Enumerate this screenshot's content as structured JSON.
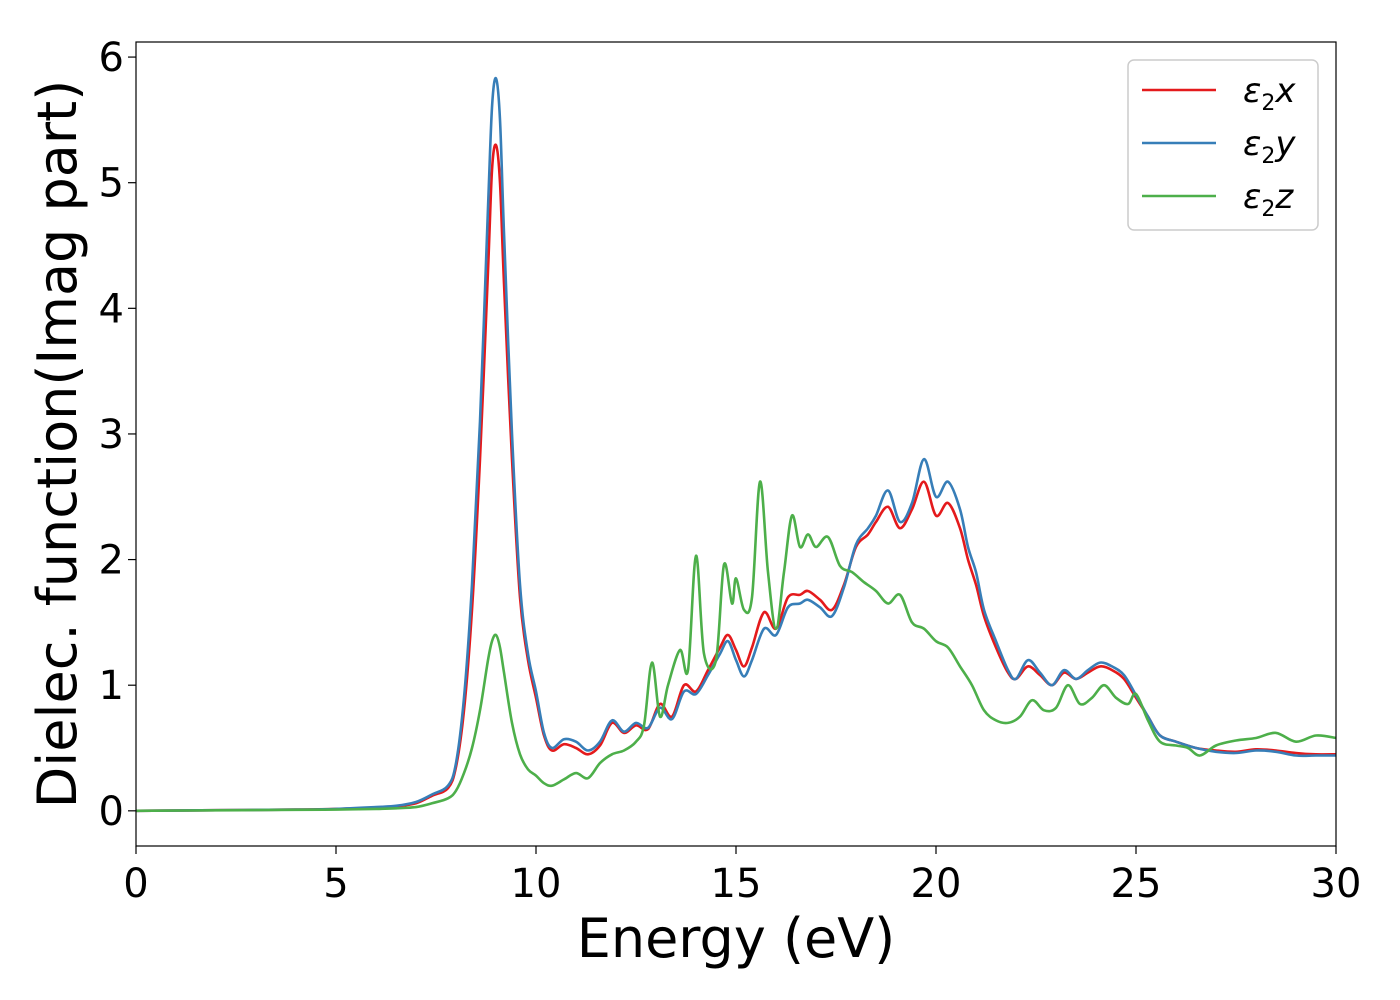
{
  "chart_data": {
    "type": "line",
    "title": "",
    "xlabel": "Energy (eV)",
    "ylabel": "Dielec. function(Imag part)",
    "xlim": [
      0,
      30
    ],
    "ylim": [
      -0.28,
      6.12
    ],
    "xticks": [
      0,
      5,
      10,
      15,
      20,
      25,
      30
    ],
    "yticks": [
      0,
      1,
      2,
      3,
      4,
      5,
      6
    ],
    "grid": false,
    "legend_position": "top-right",
    "series": [
      {
        "name": "ε2x",
        "name_base": "ε",
        "name_sub": "2",
        "name_suffix": "x",
        "color": "#e41a1c",
        "x": [
          0,
          2,
          4,
          5,
          6,
          6.5,
          7,
          7.4,
          7.8,
          8.0,
          8.2,
          8.4,
          8.6,
          8.8,
          8.9,
          9.0,
          9.1,
          9.2,
          9.4,
          9.6,
          9.8,
          10.0,
          10.2,
          10.4,
          10.7,
          11.0,
          11.3,
          11.6,
          11.9,
          12.2,
          12.5,
          12.8,
          13.1,
          13.4,
          13.7,
          14.0,
          14.3,
          14.6,
          14.8,
          15.0,
          15.2,
          15.4,
          15.7,
          16.0,
          16.3,
          16.6,
          16.8,
          17.1,
          17.4,
          17.7,
          18.0,
          18.3,
          18.5,
          18.8,
          19.1,
          19.4,
          19.7,
          20.0,
          20.3,
          20.6,
          20.8,
          21.0,
          21.2,
          21.5,
          21.8,
          22.0,
          22.3,
          22.6,
          22.9,
          23.2,
          23.5,
          23.8,
          24.1,
          24.4,
          24.7,
          25.0,
          25.3,
          25.6,
          26.0,
          26.5,
          27.0,
          27.5,
          28.0,
          28.5,
          29.0,
          29.5,
          30.0
        ],
        "y": [
          0,
          0.005,
          0.01,
          0.015,
          0.025,
          0.035,
          0.06,
          0.12,
          0.18,
          0.35,
          0.8,
          1.6,
          2.8,
          4.3,
          5.1,
          5.3,
          5.0,
          4.2,
          2.8,
          1.7,
          1.2,
          0.9,
          0.6,
          0.48,
          0.53,
          0.5,
          0.45,
          0.52,
          0.7,
          0.62,
          0.68,
          0.65,
          0.85,
          0.75,
          1.0,
          0.95,
          1.12,
          1.3,
          1.4,
          1.28,
          1.15,
          1.3,
          1.58,
          1.45,
          1.7,
          1.72,
          1.75,
          1.68,
          1.6,
          1.8,
          2.1,
          2.2,
          2.3,
          2.42,
          2.25,
          2.4,
          2.62,
          2.35,
          2.45,
          2.25,
          2.0,
          1.8,
          1.55,
          1.3,
          1.1,
          1.05,
          1.15,
          1.08,
          1.0,
          1.1,
          1.05,
          1.1,
          1.15,
          1.12,
          1.05,
          0.9,
          0.75,
          0.6,
          0.55,
          0.5,
          0.48,
          0.47,
          0.49,
          0.48,
          0.46,
          0.45,
          0.45
        ]
      },
      {
        "name": "ε2y",
        "name_base": "ε",
        "name_sub": "2",
        "name_suffix": "y",
        "color": "#377eb8",
        "x": [
          0,
          2,
          4,
          5,
          6,
          6.5,
          7,
          7.4,
          7.8,
          8.0,
          8.2,
          8.4,
          8.6,
          8.8,
          8.9,
          9.0,
          9.1,
          9.2,
          9.4,
          9.6,
          9.8,
          10.0,
          10.2,
          10.4,
          10.7,
          11.0,
          11.3,
          11.6,
          11.9,
          12.2,
          12.5,
          12.8,
          13.1,
          13.4,
          13.7,
          14.0,
          14.3,
          14.6,
          14.8,
          15.0,
          15.2,
          15.4,
          15.7,
          16.0,
          16.3,
          16.6,
          16.8,
          17.1,
          17.4,
          17.7,
          18.0,
          18.3,
          18.5,
          18.8,
          19.1,
          19.4,
          19.7,
          20.0,
          20.3,
          20.6,
          20.8,
          21.0,
          21.2,
          21.5,
          21.8,
          22.0,
          22.3,
          22.6,
          22.9,
          23.2,
          23.5,
          23.8,
          24.1,
          24.4,
          24.7,
          25.0,
          25.3,
          25.6,
          26.0,
          26.5,
          27.0,
          27.5,
          28.0,
          28.5,
          29.0,
          29.5,
          30.0
        ],
        "y": [
          0,
          0.005,
          0.01,
          0.015,
          0.03,
          0.04,
          0.07,
          0.13,
          0.2,
          0.38,
          0.9,
          1.8,
          3.1,
          4.8,
          5.6,
          5.83,
          5.5,
          4.6,
          3.0,
          1.8,
          1.25,
          0.95,
          0.62,
          0.5,
          0.57,
          0.55,
          0.48,
          0.55,
          0.72,
          0.63,
          0.7,
          0.66,
          0.82,
          0.73,
          0.95,
          0.93,
          1.08,
          1.25,
          1.35,
          1.2,
          1.07,
          1.2,
          1.45,
          1.4,
          1.62,
          1.65,
          1.68,
          1.62,
          1.55,
          1.78,
          2.12,
          2.25,
          2.35,
          2.55,
          2.3,
          2.45,
          2.8,
          2.5,
          2.62,
          2.4,
          2.1,
          1.9,
          1.6,
          1.35,
          1.12,
          1.05,
          1.2,
          1.1,
          1.0,
          1.12,
          1.05,
          1.12,
          1.18,
          1.15,
          1.08,
          0.92,
          0.75,
          0.6,
          0.55,
          0.5,
          0.47,
          0.46,
          0.48,
          0.47,
          0.44,
          0.44,
          0.44
        ]
      },
      {
        "name": "ε2z",
        "name_base": "ε",
        "name_sub": "2",
        "name_suffix": "z",
        "color": "#4daf4a",
        "x": [
          0,
          2,
          4,
          5,
          6,
          6.5,
          7,
          7.4,
          7.8,
          8.0,
          8.2,
          8.4,
          8.6,
          8.8,
          8.9,
          9.0,
          9.1,
          9.2,
          9.4,
          9.6,
          9.8,
          10.0,
          10.2,
          10.4,
          10.7,
          11.0,
          11.3,
          11.6,
          11.9,
          12.2,
          12.5,
          12.7,
          12.9,
          13.1,
          13.3,
          13.6,
          13.8,
          14.0,
          14.2,
          14.5,
          14.7,
          14.9,
          15.0,
          15.2,
          15.4,
          15.6,
          15.8,
          16.0,
          16.2,
          16.4,
          16.6,
          16.8,
          17.0,
          17.3,
          17.6,
          17.9,
          18.2,
          18.5,
          18.8,
          19.1,
          19.4,
          19.7,
          20.0,
          20.3,
          20.6,
          20.9,
          21.2,
          21.5,
          21.8,
          22.1,
          22.4,
          22.7,
          23.0,
          23.3,
          23.6,
          23.9,
          24.2,
          24.5,
          24.8,
          25.0,
          25.3,
          25.6,
          26.0,
          26.3,
          26.6,
          27.0,
          27.5,
          28.0,
          28.5,
          29.0,
          29.5,
          30.0
        ],
        "y": [
          0,
          0.004,
          0.008,
          0.01,
          0.015,
          0.02,
          0.03,
          0.06,
          0.1,
          0.16,
          0.3,
          0.5,
          0.8,
          1.2,
          1.35,
          1.4,
          1.3,
          1.1,
          0.7,
          0.45,
          0.33,
          0.28,
          0.22,
          0.2,
          0.25,
          0.3,
          0.26,
          0.38,
          0.45,
          0.48,
          0.55,
          0.68,
          1.18,
          0.75,
          1.0,
          1.28,
          1.12,
          2.03,
          1.25,
          1.2,
          1.96,
          1.65,
          1.85,
          1.6,
          1.7,
          2.62,
          1.9,
          1.45,
          1.9,
          2.35,
          2.1,
          2.2,
          2.1,
          2.18,
          1.95,
          1.9,
          1.82,
          1.75,
          1.65,
          1.72,
          1.5,
          1.45,
          1.35,
          1.3,
          1.15,
          1.0,
          0.8,
          0.72,
          0.7,
          0.75,
          0.88,
          0.8,
          0.82,
          1.0,
          0.85,
          0.9,
          1.0,
          0.9,
          0.85,
          0.93,
          0.72,
          0.55,
          0.52,
          0.5,
          0.44,
          0.52,
          0.56,
          0.58,
          0.62,
          0.55,
          0.6,
          0.58
        ]
      }
    ]
  }
}
